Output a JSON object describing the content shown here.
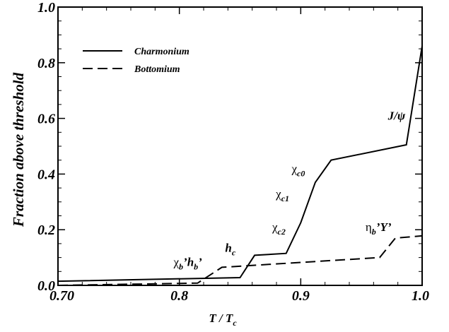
{
  "chart_data": {
    "type": "line",
    "xlabel_main": "T / T",
    "xlabel_sub": "c",
    "ylabel": "Fraction above threshold",
    "xlim": [
      0.7,
      1.0
    ],
    "ylim": [
      0.0,
      1.0
    ],
    "x_ticks": [
      "0.70",
      "0.8",
      "0.9",
      "1.0"
    ],
    "y_ticks": [
      "0.0",
      "0.2",
      "0.4",
      "0.6",
      "0.8",
      "1.0"
    ],
    "legend_position": "top-left",
    "series": [
      {
        "name": "Charmonium",
        "style": "solid",
        "x": [
          0.7,
          0.85,
          0.862,
          0.888,
          0.9,
          0.912,
          0.925,
          0.987,
          1.0
        ],
        "y": [
          0.015,
          0.028,
          0.108,
          0.115,
          0.225,
          0.37,
          0.45,
          0.505,
          0.86
        ]
      },
      {
        "name": "Bottomium",
        "style": "dashed",
        "x": [
          0.7,
          0.815,
          0.835,
          0.965,
          0.978,
          1.0
        ],
        "y": [
          0.0,
          0.008,
          0.065,
          0.1,
          0.17,
          0.178
        ]
      }
    ],
    "annotations": [
      {
        "id": "jpsi",
        "text": "J/ψ",
        "x": 0.979,
        "y": 0.595
      },
      {
        "id": "chi-c0",
        "text": "χ",
        "sub": "c0",
        "x": 0.898,
        "y": 0.405
      },
      {
        "id": "chi-c1",
        "text": "χ",
        "sub": "c1",
        "x": 0.885,
        "y": 0.315
      },
      {
        "id": "chi-c2",
        "text": "χ",
        "sub": "c2",
        "x": 0.882,
        "y": 0.195
      },
      {
        "id": "hc",
        "text": "h",
        "sub": "c",
        "x": 0.842,
        "y": 0.12
      },
      {
        "id": "chib-hb",
        "text": "χ",
        "sub": "b",
        "text2": "’h",
        "sub2": "b",
        "text3": "’",
        "x": 0.807,
        "y": 0.07
      },
      {
        "id": "etab-y",
        "text": "η",
        "sub": "b",
        "text2": "’Υ’",
        "x": 0.964,
        "y": 0.195
      }
    ]
  }
}
